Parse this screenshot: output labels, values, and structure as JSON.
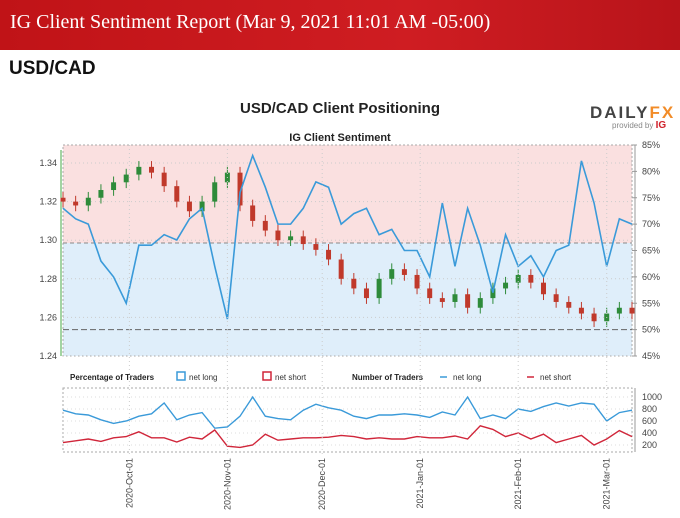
{
  "header": {
    "title": "IG Client Sentiment Report (Mar 9, 2021 11:01 AM -05:00)"
  },
  "pair": "USD/CAD",
  "logo": {
    "brand_a": "DAILY",
    "brand_b": "FX",
    "provided": "provided by",
    "ig": "IG"
  },
  "colors": {
    "header": "#c8151b",
    "long": "#3a9ad9",
    "short": "#d0263a",
    "up": "#2e8b3a",
    "down": "#c0392b",
    "pink": "#fae0e0",
    "blue": "#dfeefa"
  },
  "chart_data": [
    {
      "type": "line",
      "title": "USD/CAD Client Positioning",
      "subtitle": "IG Client Sentiment",
      "start_date": "2020-09-10",
      "step_days": 4,
      "left_axis": {
        "ticks": [
          "1.34",
          "1.32",
          "1.30",
          "1.28",
          "1.26",
          "1.24"
        ],
        "range": [
          1.24,
          1.34
        ]
      },
      "right_axis": {
        "ticks": [
          "85%",
          "80%",
          "75%",
          "70%",
          "65%",
          "60%",
          "55%",
          "50%",
          "45%"
        ],
        "range": [
          45,
          85
        ]
      },
      "series": [
        {
          "name": "net long %",
          "values": [
            73,
            71,
            70,
            63,
            60,
            55,
            66,
            66,
            68,
            67,
            71,
            73,
            62,
            52,
            76,
            83,
            77,
            70,
            70,
            73,
            78,
            77,
            70,
            72,
            73,
            68,
            69,
            65,
            65,
            60,
            74,
            62,
            73,
            66,
            57,
            68,
            62,
            64,
            60,
            65,
            66,
            82,
            74,
            62,
            71,
            70
          ]
        },
        {
          "name": "price close",
          "values": [
            1.32,
            1.318,
            1.322,
            1.326,
            1.33,
            1.334,
            1.338,
            1.335,
            1.328,
            1.32,
            1.315,
            1.32,
            1.33,
            1.335,
            1.318,
            1.31,
            1.305,
            1.3,
            1.302,
            1.298,
            1.295,
            1.29,
            1.28,
            1.275,
            1.27,
            1.28,
            1.285,
            1.282,
            1.275,
            1.27,
            1.268,
            1.272,
            1.265,
            1.27,
            1.275,
            1.278,
            1.282,
            1.278,
            1.272,
            1.268,
            1.265,
            1.262,
            1.258,
            1.262,
            1.265,
            1.262
          ]
        }
      ]
    },
    {
      "type": "line",
      "legend": {
        "pct_label": "Percentage of Traders",
        "pct_long": "net long",
        "pct_short": "net short",
        "num_label": "Number of Traders",
        "num_long": "net long",
        "num_short": "net short"
      },
      "right_axis": {
        "ticks": [
          "1000",
          "800",
          "600",
          "400",
          "200"
        ],
        "range": [
          200,
          1000
        ]
      },
      "x_ticks": [
        {
          "date": "2020-10-01",
          "label": "2020-Oct-01"
        },
        {
          "date": "2020-11-01",
          "label": "2020-Nov-01"
        },
        {
          "date": "2020-12-01",
          "label": "2020-Dec-01"
        },
        {
          "date": "2021-01-01",
          "label": "2021-Jan-01"
        },
        {
          "date": "2021-02-01",
          "label": "2021-Feb-01"
        },
        {
          "date": "2021-03-01",
          "label": "2021-Mar-01"
        }
      ],
      "series": [
        {
          "name": "net long",
          "values": [
            780,
            720,
            700,
            620,
            560,
            600,
            680,
            720,
            900,
            620,
            700,
            740,
            480,
            500,
            680,
            1000,
            680,
            640,
            620,
            780,
            880,
            820,
            780,
            680,
            640,
            700,
            700,
            720,
            700,
            660,
            750,
            700,
            1000,
            640,
            700,
            640,
            800,
            760,
            840,
            900,
            850,
            900,
            880,
            600,
            740,
            780
          ]
        },
        {
          "name": "net short",
          "values": [
            240,
            270,
            300,
            260,
            320,
            340,
            420,
            320,
            320,
            250,
            330,
            300,
            450,
            180,
            160,
            200,
            380,
            280,
            300,
            320,
            320,
            330,
            360,
            340,
            300,
            320,
            300,
            300,
            340,
            320,
            320,
            350,
            300,
            520,
            460,
            340,
            400,
            300,
            380,
            240,
            300,
            360,
            200,
            300,
            440,
            340
          ]
        }
      ]
    }
  ]
}
